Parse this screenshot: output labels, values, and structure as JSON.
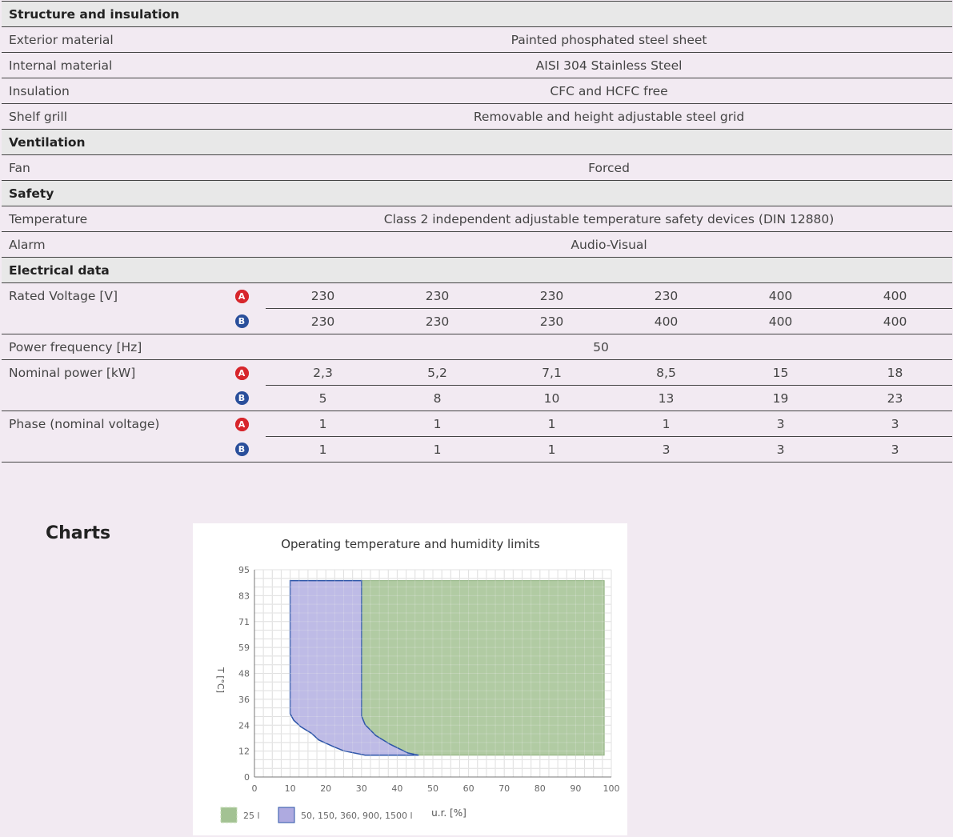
{
  "sections": {
    "structure": {
      "title": "Structure and insulation",
      "rows": [
        {
          "label": "Exterior material",
          "value": "Painted phosphated steel sheet"
        },
        {
          "label": "Internal material",
          "value": "AISI 304 Stainless Steel"
        },
        {
          "label": "Insulation",
          "value": "CFC and HCFC free"
        },
        {
          "label": "Shelf grill",
          "value": "Removable and height adjustable steel grid"
        }
      ]
    },
    "ventilation": {
      "title": "Ventilation",
      "rows": [
        {
          "label": "Fan",
          "value": "Forced"
        }
      ]
    },
    "safety": {
      "title": "Safety",
      "rows": [
        {
          "label": "Temperature",
          "value": "Class 2 independent adjustable temperature safety devices (DIN 12880)"
        },
        {
          "label": "Alarm",
          "value": "Audio-Visual"
        }
      ]
    },
    "electrical": {
      "title": "Electrical data",
      "badge_a": "A",
      "badge_b": "B",
      "voltage": {
        "label": "Rated Voltage [V]",
        "a": [
          "230",
          "230",
          "230",
          "230",
          "400",
          "400"
        ],
        "b": [
          "230",
          "230",
          "230",
          "400",
          "400",
          "400"
        ]
      },
      "frequency": {
        "label": "Power frequency [Hz]",
        "value": "50"
      },
      "power": {
        "label": "Nominal power [kW]",
        "a": [
          "2,3",
          "5,2",
          "7,1",
          "8,5",
          "15",
          "18"
        ],
        "b": [
          "5",
          "8",
          "10",
          "13",
          "19",
          "23"
        ]
      },
      "phase": {
        "label": "Phase (nominal voltage)",
        "a": [
          "1",
          "1",
          "1",
          "1",
          "3",
          "3"
        ],
        "b": [
          "1",
          "1",
          "1",
          "3",
          "3",
          "3"
        ]
      }
    }
  },
  "charts_heading": "Charts",
  "colors": {
    "badge_a": "#d7262c",
    "badge_b": "#2a4f9b",
    "green_fill": "#a3c293",
    "blue_fill": "#aeaae0",
    "blue_line": "#2d55a8"
  },
  "chart_data": {
    "type": "area",
    "title": "Operating temperature and humidity limits",
    "xlabel": "u.r. [%]",
    "ylabel": "T [°C]",
    "xlim": [
      0,
      100
    ],
    "ylim": [
      0,
      95
    ],
    "xticks": [
      0,
      10,
      20,
      30,
      40,
      50,
      60,
      70,
      80,
      90,
      100
    ],
    "yticks": [
      0,
      12,
      24,
      36,
      48,
      59,
      71,
      83,
      95
    ],
    "grid": true,
    "legend_position": "bottom-left",
    "series": [
      {
        "name": "25 l",
        "color": "#a3c293",
        "polygon": [
          [
            30,
            90
          ],
          [
            98,
            90
          ],
          [
            98,
            10
          ],
          [
            46,
            10
          ],
          [
            43,
            11
          ],
          [
            38,
            15
          ],
          [
            34,
            19
          ],
          [
            31,
            24
          ],
          [
            30,
            28
          ]
        ]
      },
      {
        "name": "50, 150, 360, 900, 1500 l",
        "color": "#aeaae0",
        "polygon": [
          [
            10,
            90
          ],
          [
            30,
            90
          ],
          [
            30,
            28
          ],
          [
            31,
            24
          ],
          [
            34,
            19
          ],
          [
            38,
            15
          ],
          [
            43,
            11
          ],
          [
            46,
            10
          ],
          [
            31,
            10
          ],
          [
            25,
            12
          ],
          [
            22,
            14
          ],
          [
            18,
            17
          ],
          [
            16,
            20
          ],
          [
            13,
            23
          ],
          [
            11,
            26
          ],
          [
            10,
            29
          ]
        ]
      }
    ]
  }
}
